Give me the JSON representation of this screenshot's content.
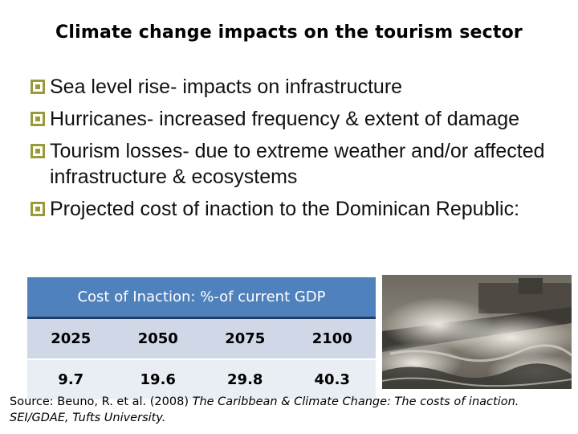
{
  "slide": {
    "title": "Climate change impacts on the tourism sector",
    "bullets": [
      "Sea level rise- impacts on infrastructure",
      "Hurricanes- increased frequency & extent of damage",
      "Tourism losses- due to extreme weather and/or affected infrastructure & ecosystems",
      "Projected cost of inaction to the Dominican Republic:"
    ]
  },
  "table": {
    "header": "Cost of Inaction: %-of current GDP",
    "years": [
      "2025",
      "2050",
      "2075",
      "2100"
    ],
    "values": [
      "9.7",
      "19.6",
      "29.8",
      "40.3"
    ]
  },
  "photo": {
    "icon": "stormy-waves-photo"
  },
  "source": {
    "lead": "Source: Beuno, R. et al. (2008) ",
    "italic": "The Caribbean & Climate Change: The costs of inaction. SEI/GDAE, Tufts University."
  }
}
